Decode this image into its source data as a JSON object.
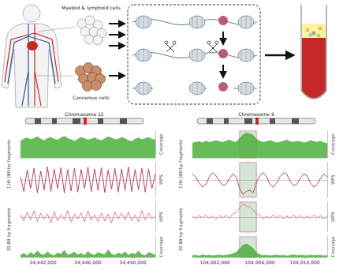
{
  "illustration": {
    "immune_label": "Myeloid & lymphoid cells",
    "cancer_label": "Cancerous cells"
  },
  "chart_data": [
    {
      "type": "line",
      "chromosome": "Chromosome 12",
      "tick_labels": "x",
      "x": [
        34440000,
        34440300,
        34440600,
        34440900,
        34441200,
        34441500,
        34441800,
        34442100,
        34442400,
        34442700,
        34443000,
        34443300,
        34443600,
        34443900,
        34444200,
        34444500,
        34444800,
        34445100,
        34445400,
        34445700,
        34446000,
        34446300,
        34446600,
        34446900,
        34447200,
        34447500,
        34447800,
        34448100,
        34448400,
        34448700,
        34449000,
        34449300,
        34449600,
        34449900,
        34450200,
        34450500,
        34450800,
        34451100,
        34451400,
        34451700,
        34452000
      ],
      "xlim": [
        34440000,
        34452000
      ],
      "xticks": [
        {
          "value": 34442000,
          "label": "34,442,000"
        },
        {
          "value": 34446000,
          "label": "34,446,000"
        },
        {
          "value": 34450000,
          "label": "34,450,000"
        }
      ],
      "tracks": [
        {
          "group": "120-180 bp fragments",
          "name": "Coverage",
          "type": "area",
          "color": "#4caf3c",
          "ylim": [
            0,
            100
          ],
          "values": [
            62,
            70,
            74,
            68,
            72,
            78,
            70,
            64,
            72,
            76,
            70,
            66,
            74,
            80,
            72,
            68,
            62,
            70,
            76,
            72,
            66,
            70,
            74,
            68,
            64,
            72,
            78,
            74,
            68,
            70,
            76,
            72,
            64,
            60,
            70,
            74,
            68,
            72,
            76,
            70,
            66
          ]
        },
        {
          "group": "120-180 bp fragments",
          "name": "WPS",
          "type": "line",
          "color": "#b03060",
          "ylim": [
            -60,
            60
          ],
          "values": [
            10,
            -40,
            35,
            -30,
            40,
            -45,
            30,
            -35,
            45,
            -40,
            38,
            -30,
            42,
            -45,
            35,
            -38,
            40,
            -42,
            36,
            -30,
            44,
            -40,
            38,
            -36,
            42,
            -44,
            34,
            -32,
            40,
            -42,
            38,
            -36,
            44,
            -40,
            36,
            -34,
            40,
            -42,
            38,
            -30,
            20
          ]
        },
        {
          "group": "35-80 bp fragments",
          "name": "WPS",
          "type": "line",
          "color": "#e07080",
          "ylim": [
            -30,
            30
          ],
          "values": [
            5,
            -8,
            10,
            -6,
            12,
            -10,
            8,
            -4,
            6,
            -12,
            10,
            -8,
            4,
            -6,
            12,
            -10,
            6,
            -4,
            8,
            -10,
            12,
            -6,
            4,
            -10,
            8,
            -8,
            6,
            -12,
            10,
            -4,
            8,
            -6,
            10,
            -8,
            4,
            -10,
            12,
            -6,
            8,
            -4,
            2
          ]
        },
        {
          "group": "35-80 bp fragments",
          "name": "Coverage",
          "type": "area",
          "color": "#4caf3c",
          "ylim": [
            0,
            100
          ],
          "values": [
            10,
            18,
            8,
            22,
            12,
            30,
            14,
            10,
            26,
            12,
            8,
            20,
            14,
            34,
            10,
            16,
            24,
            12,
            18,
            8,
            28,
            14,
            10,
            22,
            16,
            12,
            36,
            14,
            10,
            20,
            12,
            26,
            10,
            18,
            14,
            30,
            12,
            8,
            22,
            16,
            10
          ]
        }
      ]
    },
    {
      "type": "line",
      "chromosome": "Chromosome 9",
      "tick_labels": "x",
      "x": [
        104000000,
        104000300,
        104000600,
        104000900,
        104001200,
        104001500,
        104001800,
        104002100,
        104002400,
        104002700,
        104003000,
        104003300,
        104003600,
        104003900,
        104004200,
        104004500,
        104004800,
        104005100,
        104005400,
        104005700,
        104006000,
        104006300,
        104006600,
        104006900,
        104007200,
        104007500,
        104007800,
        104008100,
        104008400,
        104008700,
        104009000,
        104009300,
        104009600,
        104009900,
        104010200,
        104010500,
        104010800,
        104011100,
        104011400,
        104011700,
        104012000
      ],
      "xlim": [
        104000000,
        104012000
      ],
      "xticks": [
        {
          "value": 104002000,
          "label": "104,002,000"
        },
        {
          "value": 104006000,
          "label": "104,006,000"
        },
        {
          "value": 104010000,
          "label": "104,010,000"
        }
      ],
      "highlight": [
        104004200,
        104005700
      ],
      "tracks": [
        {
          "group": "120-180 bp fragments",
          "name": "Coverage",
          "type": "area",
          "color": "#4caf3c",
          "ylim": [
            0,
            100
          ],
          "values": [
            55,
            58,
            60,
            56,
            62,
            58,
            60,
            64,
            60,
            58,
            62,
            66,
            60,
            58,
            72,
            86,
            92,
            90,
            84,
            70,
            62,
            58,
            60,
            64,
            60,
            56,
            58,
            62,
            66,
            60,
            58,
            62,
            60,
            56,
            58,
            64,
            60,
            58,
            62,
            56,
            54
          ]
        },
        {
          "group": "120-180 bp fragments",
          "name": "WPS",
          "type": "line",
          "color": "#b03060",
          "ylim": [
            -60,
            60
          ],
          "values": [
            20,
            10,
            -10,
            -25,
            -15,
            10,
            25,
            15,
            -5,
            -20,
            -15,
            5,
            20,
            10,
            -30,
            -50,
            -40,
            -35,
            -45,
            -10,
            15,
            25,
            10,
            -15,
            -25,
            -10,
            10,
            25,
            20,
            -5,
            -20,
            -15,
            5,
            20,
            15,
            -10,
            -25,
            -15,
            5,
            20,
            10
          ]
        },
        {
          "group": "35-80 bp fragments",
          "name": "WPS",
          "type": "line",
          "color": "#e07080",
          "ylim": [
            -30,
            30
          ],
          "values": [
            2,
            -4,
            3,
            -2,
            4,
            -3,
            2,
            -5,
            3,
            -2,
            4,
            -3,
            6,
            10,
            18,
            26,
            22,
            20,
            14,
            6,
            3,
            -4,
            2,
            -3,
            4,
            -2,
            3,
            -4,
            2,
            -3,
            4,
            -2,
            3,
            -4,
            2,
            -3,
            4,
            -2,
            3,
            -4,
            2
          ]
        },
        {
          "group": "35-80 bp fragments",
          "name": "Coverage",
          "type": "area",
          "color": "#4caf3c",
          "ylim": [
            0,
            100
          ],
          "values": [
            8,
            10,
            6,
            12,
            8,
            10,
            7,
            9,
            11,
            8,
            10,
            12,
            16,
            24,
            40,
            58,
            64,
            56,
            42,
            22,
            12,
            8,
            10,
            7,
            9,
            11,
            8,
            10,
            6,
            9,
            12,
            8,
            10,
            9,
            7,
            11,
            8,
            10,
            9,
            7,
            8
          ]
        }
      ]
    }
  ]
}
